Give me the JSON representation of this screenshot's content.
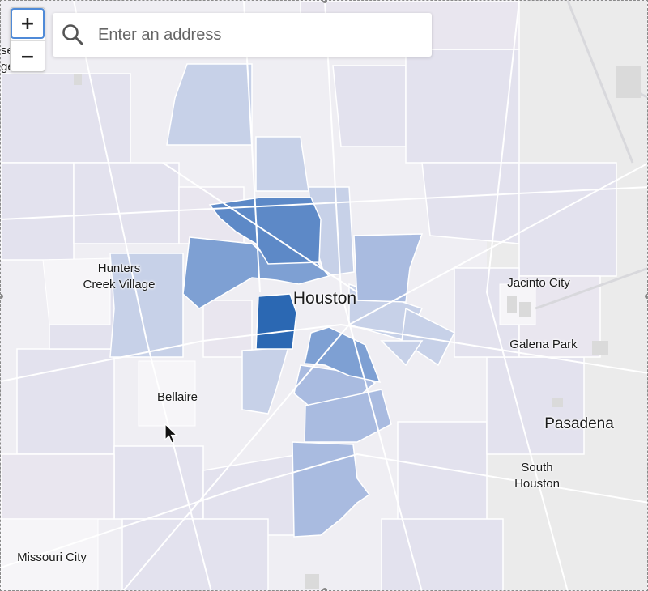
{
  "search": {
    "placeholder": "Enter an address",
    "value": ""
  },
  "zoom": {
    "in_label": "+",
    "out_label": "−"
  },
  "places": {
    "hunters_creek": "Hunters\nCreek Village",
    "houston": "Houston",
    "jacinto_city": "Jacinto City",
    "galena_park": "Galena Park",
    "bellaire": "Bellaire",
    "pasadena": "Pasadena",
    "south_houston": "South\nHouston",
    "missouri_city": "Missouri City",
    "edge_fragment": "se\nge"
  },
  "colors": {
    "base": "#f1f0f4",
    "light": "#dcdcea",
    "mid": "#b7c4e0",
    "strong": "#8ba9d8",
    "darker": "#6b93cc",
    "darkest": "#2b68b3"
  }
}
